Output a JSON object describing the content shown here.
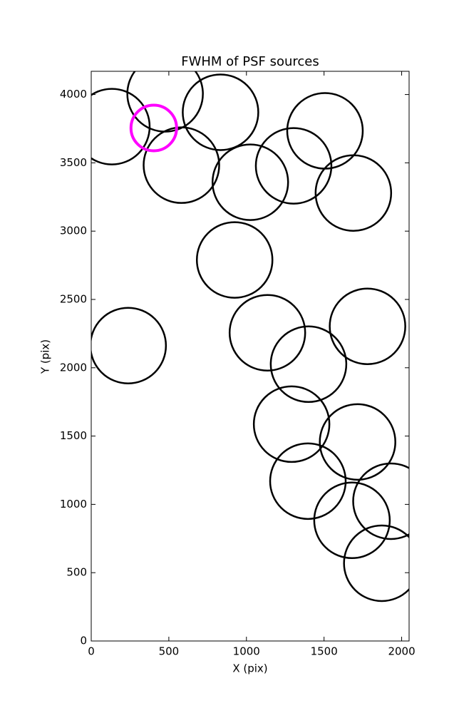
{
  "chart_data": {
    "type": "scatter",
    "title": "FWHM of PSF sources",
    "x_label": "X (pix)",
    "y_label": "Y (pix)",
    "xlim": [
      0,
      2048
    ],
    "ylim": [
      0,
      4170
    ],
    "xticks": [
      0,
      500,
      1000,
      1500,
      2000
    ],
    "yticks": [
      0,
      500,
      1000,
      1500,
      2000,
      2500,
      3000,
      3500,
      4000
    ],
    "grid": false,
    "series": [
      {
        "color": "#000000",
        "marker": "open-circle",
        "x": [
          133,
          476,
          833,
          581,
          1025,
          1304,
          1506,
          1689,
          924,
          238,
          1135,
          1780,
          1400,
          1291,
          1716,
          1396,
          1931,
          1680,
          1872
        ],
        "values": [
          3765,
          4005,
          3870,
          3483,
          3358,
          3478,
          3734,
          3279,
          2789,
          2162,
          2256,
          2303,
          2026,
          1587,
          1457,
          1170,
          1023,
          883,
          569
        ]
      },
      {
        "color": "#ff00ff",
        "marker": "open-circle",
        "x": [
          403
        ],
        "values": [
          3755
        ]
      }
    ]
  }
}
